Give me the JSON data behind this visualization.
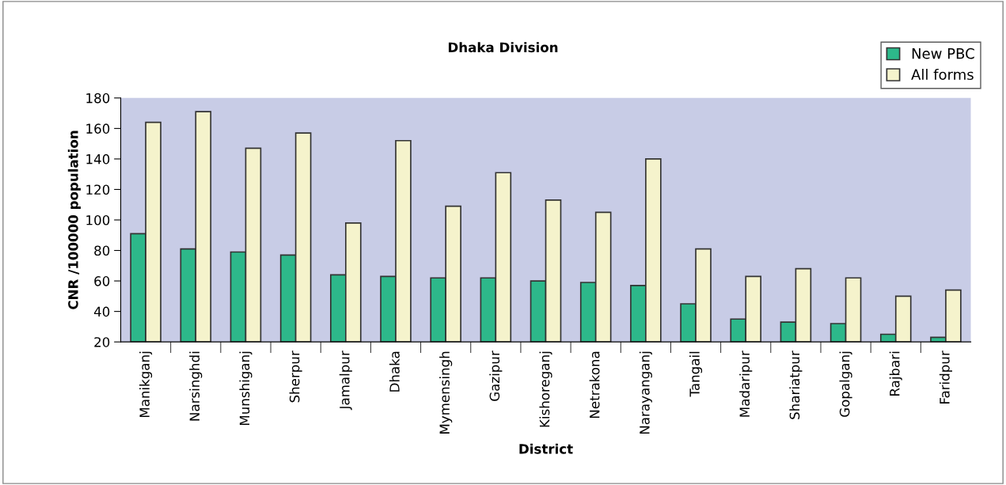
{
  "chart_data": {
    "type": "bar",
    "title": "Dhaka Division",
    "xlabel": "District",
    "ylabel": "CNR /100000 population",
    "categories": [
      "Manikganj",
      "Narsinghdi",
      "Munshiganj",
      "Sherpur",
      "Jamalpur",
      "Dhaka",
      "Mymensingh",
      "Gazipur",
      "Kishoreganj",
      "Netrakona",
      "Narayanganj",
      "Tangail",
      "Madaripur",
      "Shariatpur",
      "Gopalganj",
      "Rajbari",
      "Faridpur"
    ],
    "series": [
      {
        "name": "New PBC",
        "color": "#2db88a",
        "values": [
          91,
          81,
          79,
          77,
          64,
          63,
          62,
          62,
          60,
          59,
          57,
          45,
          35,
          33,
          32,
          25,
          23
        ]
      },
      {
        "name": "All forms",
        "color": "#f5f3cc",
        "values": [
          164,
          171,
          147,
          157,
          98,
          152,
          109,
          131,
          113,
          105,
          140,
          81,
          63,
          68,
          62,
          50,
          54
        ]
      }
    ],
    "ylim": [
      20,
      180
    ],
    "yticks": [
      20,
      40,
      60,
      80,
      100,
      120,
      140,
      160,
      180
    ],
    "grid": false,
    "legend": "top right"
  }
}
